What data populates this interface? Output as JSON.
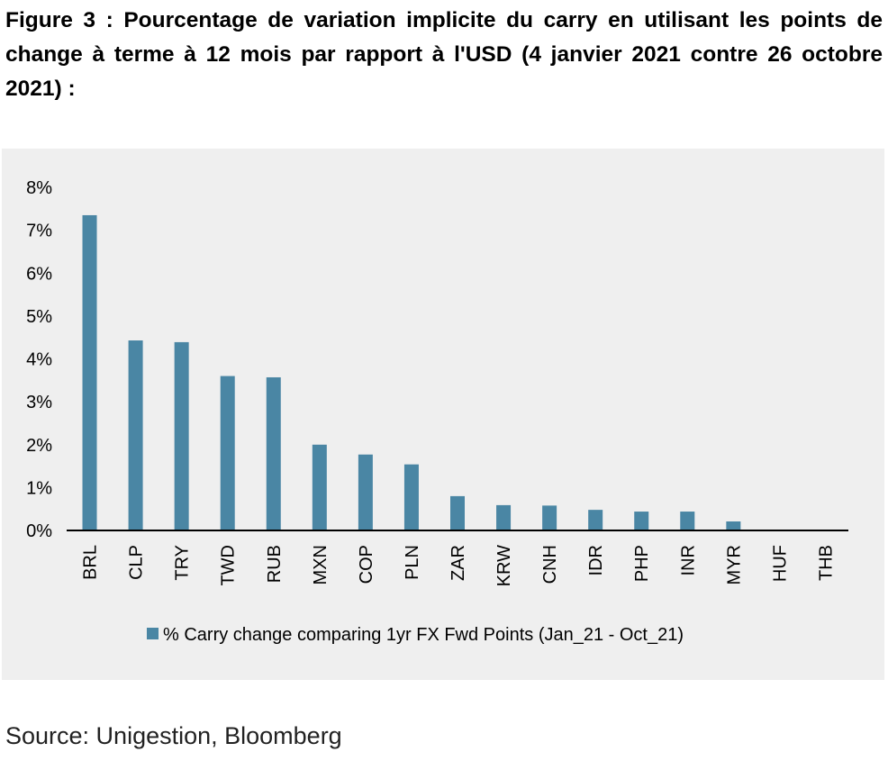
{
  "figure": {
    "title": "Figure 3 : Pourcentage de variation implicite du carry en utilisant les points de change à terme à 12 mois par rapport à l'USD (4 janvier 2021 contre 26 octobre 2021) :",
    "source": "Source: Unigestion, Bloomberg"
  },
  "colors": {
    "bar": "#4a86a4",
    "panel_background": "#efefef",
    "axis": "#000000"
  },
  "chart_data": {
    "type": "bar",
    "categories": [
      "BRL",
      "CLP",
      "TRY",
      "TWD",
      "RUB",
      "MXN",
      "COP",
      "PLN",
      "ZAR",
      "KRW",
      "CNH",
      "IDR",
      "PHP",
      "INR",
      "MYR",
      "HUF",
      "THB"
    ],
    "series": [
      {
        "name": "% Carry change comparing 1yr FX Fwd Points (Jan_21 - Oct_21)",
        "values": [
          7.35,
          4.43,
          4.39,
          3.6,
          3.57,
          2.0,
          1.77,
          1.54,
          0.8,
          0.59,
          0.58,
          0.48,
          0.44,
          0.44,
          0.21,
          0.02,
          0.0
        ]
      }
    ],
    "ylim": [
      0,
      8
    ],
    "yticks": [
      0,
      1,
      2,
      3,
      4,
      5,
      6,
      7,
      8
    ],
    "ytick_labels": [
      "0%",
      "1%",
      "2%",
      "3%",
      "4%",
      "5%",
      "6%",
      "7%",
      "8%"
    ],
    "xlabel": "",
    "ylabel": "",
    "grid": false,
    "legend_position": "bottom-center"
  }
}
